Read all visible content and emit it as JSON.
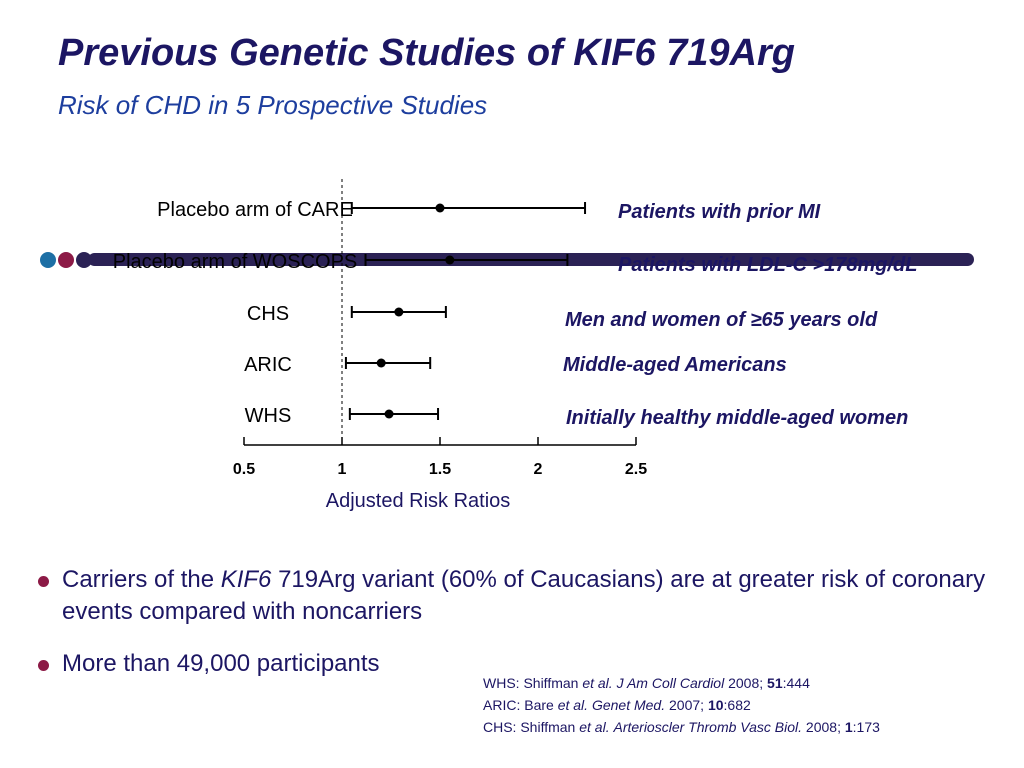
{
  "slide": {
    "title": "Previous Genetic Studies of KIF6 719Arg",
    "subtitle": "Risk of CHD in 5 Prospective Studies"
  },
  "colors": {
    "title": "#1c1663",
    "subtitle": "#1d3e9e",
    "deco_dot_1": "#1d6fa5",
    "deco_dot_2": "#8c1a46",
    "deco_dot_3": "#2b2255",
    "deco_bar": "#2b2255",
    "bullet_dot": "#8c1a46",
    "chart_ink": "#000000",
    "annotation": "#1c1663"
  },
  "chart_data": {
    "type": "forest",
    "xlabel": "Adjusted Risk Ratios",
    "x_ticks": [
      "0.5",
      "1",
      "1.5",
      "2",
      "2.5"
    ],
    "xlim": [
      0.5,
      2.5
    ],
    "reference_line": 1,
    "studies": [
      {
        "label": "Placebo arm of CARE",
        "estimate": 1.5,
        "ci": [
          1.05,
          2.24
        ],
        "annotation": "Patients with prior MI"
      },
      {
        "label": "Placebo arm of WOSCOPS",
        "estimate": 1.55,
        "ci": [
          1.12,
          2.15
        ],
        "annotation": "Patients with LDL-C >178mg/dL"
      },
      {
        "label": "CHS",
        "estimate": 1.29,
        "ci": [
          1.05,
          1.53
        ],
        "annotation": "Men and women of ≥65 years old"
      },
      {
        "label": "ARIC",
        "estimate": 1.2,
        "ci": [
          1.02,
          1.45
        ],
        "annotation": "Middle-aged Americans"
      },
      {
        "label": "WHS",
        "estimate": 1.24,
        "ci": [
          1.04,
          1.49
        ],
        "annotation": "Initially healthy middle-aged women"
      }
    ]
  },
  "bullets": [
    {
      "before": "Carriers of the ",
      "italic": "KIF6",
      "after": " 719Arg variant (60% of Caucasians) are at greater risk of coronary events compared with noncarriers"
    },
    {
      "text": "More than 49,000 participants"
    }
  ],
  "references": [
    {
      "prefix": "WHS: Shiffman ",
      "etal": "et al.",
      "journal": "J Am Coll Cardiol",
      "year": " 2008; ",
      "volume": "51",
      "pages": ":444"
    },
    {
      "prefix": "ARIC: Bare ",
      "etal": "et al.",
      "journal": "Genet Med.",
      "year": " 2007; ",
      "volume": "10",
      "pages": ":682"
    },
    {
      "prefix": "CHS: Shiffman ",
      "etal": "et al.",
      "journal": "Arterioscler Thromb Vasc Biol.",
      "year": " 2008; ",
      "volume": "1",
      "pages": ":173"
    }
  ]
}
